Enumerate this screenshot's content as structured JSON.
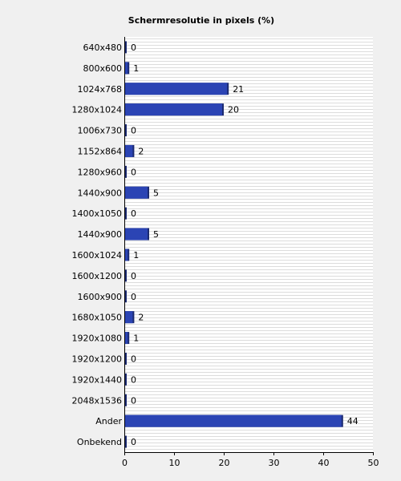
{
  "chart_data": {
    "type": "bar",
    "orientation": "horizontal",
    "title": "Schermresolutie in pixels (%)",
    "xlabel": "",
    "ylabel": "",
    "categories": [
      "640x480",
      "800x600",
      "1024x768",
      "1280x1024",
      "1006x730",
      "1152x864",
      "1280x960",
      "1440x900",
      "1400x1050",
      "1440x900",
      "1600x1024",
      "1600x1200",
      "1600x900",
      "1680x1050",
      "1920x1080",
      "1920x1200",
      "1920x1440",
      "2048x1536",
      "Ander",
      "Onbekend"
    ],
    "values": [
      0,
      1,
      21,
      20,
      0,
      2,
      0,
      5,
      0,
      5,
      1,
      0,
      0,
      2,
      1,
      0,
      0,
      0,
      44,
      0
    ],
    "value_labels": [
      "0",
      "1",
      "21",
      "20",
      "0",
      "2",
      "0",
      "5",
      "0",
      "5",
      "1",
      "0",
      "0",
      "2",
      "1",
      "0",
      "0",
      "0",
      "44",
      "0"
    ],
    "xlim": [
      0,
      50
    ],
    "xticks": [
      0,
      10,
      20,
      30,
      40,
      50
    ],
    "xtick_labels": [
      "0",
      "10",
      "20",
      "30",
      "40",
      "50"
    ],
    "grid": "horizontal stripes",
    "legend": "none",
    "colors": {
      "bar": "#2b44b4",
      "bar_shadow": "#1b2a70",
      "plot_background": "#ffffff",
      "stripe": "#dcdcdc",
      "page_background": "#f0f0f0",
      "axis": "#000000"
    }
  }
}
